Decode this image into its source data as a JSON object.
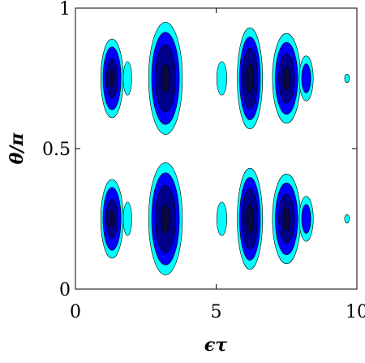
{
  "chart_data": {
    "type": "contour",
    "title": "",
    "xlabel": "ϵτ",
    "ylabel": "θ/π",
    "xlim": [
      0,
      10
    ],
    "ylim": [
      0,
      1
    ],
    "xticks": [
      {
        "value": 0,
        "label": "0"
      },
      {
        "value": 5,
        "label": "5"
      },
      {
        "value": 10,
        "label": "10"
      }
    ],
    "yticks": [
      {
        "value": 0,
        "label": "0"
      },
      {
        "value": 0.5,
        "label": "0.5"
      },
      {
        "value": 1,
        "label": "1"
      }
    ],
    "level_colors": [
      "#00ffff",
      "#0000ff",
      "#00008b",
      "#0a0a40"
    ],
    "band_centers_y": [
      0.25,
      0.75
    ],
    "blobs": [
      {
        "x": 1.3,
        "y_half": 0.14,
        "x_half": 0.4,
        "levels": [
          1,
          0.8,
          0.5,
          0.22
        ]
      },
      {
        "x": 1.85,
        "y_half": 0.06,
        "x_half": 0.15,
        "levels": [
          1
        ]
      },
      {
        "x": 3.2,
        "y_half": 0.2,
        "x_half": 0.6,
        "levels": [
          1,
          0.82,
          0.6,
          0.25
        ]
      },
      {
        "x": 2.4,
        "y_half": 0.0,
        "x_half": 0.05,
        "levels": []
      },
      {
        "x": 5.2,
        "y_half": 0.06,
        "x_half": 0.18,
        "levels": [
          1
        ]
      },
      {
        "x": 6.2,
        "y_half": 0.18,
        "x_half": 0.45,
        "levels": [
          1,
          0.82,
          0.6,
          0.28
        ]
      },
      {
        "x": 7.5,
        "y_half": 0.16,
        "x_half": 0.5,
        "levels": [
          1,
          0.8,
          0.55,
          0.25
        ]
      },
      {
        "x": 8.2,
        "y_half": 0.08,
        "x_half": 0.25,
        "levels": [
          1,
          0.65
        ]
      },
      {
        "x": 9.65,
        "y_half": 0.0,
        "x_half": 0.05,
        "levels": [
          1
        ]
      }
    ]
  }
}
